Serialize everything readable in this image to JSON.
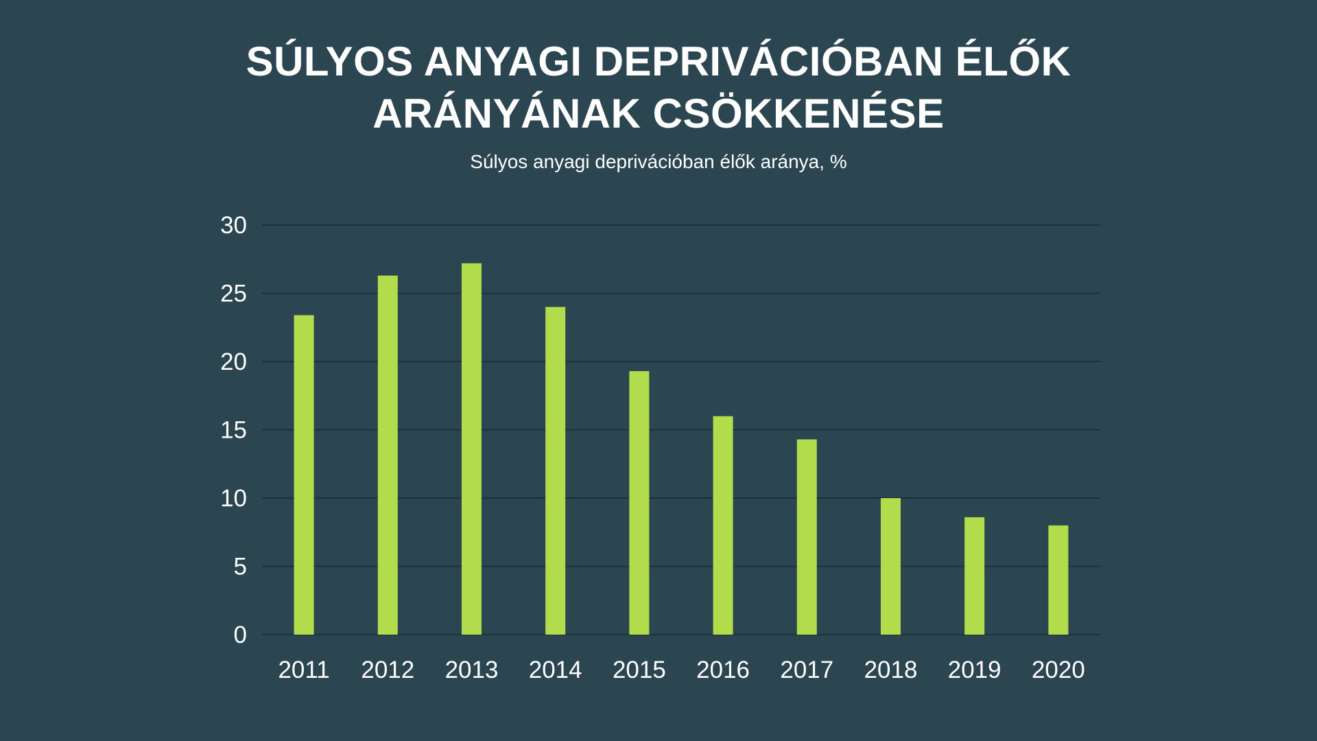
{
  "colors": {
    "background": "#2b4651",
    "bar": "#b3dc4c",
    "grid": "#1c313a",
    "text": "#ffffff"
  },
  "chart_data": {
    "type": "bar",
    "title_lines": [
      "SÚLYOS ANYAGI DEPRIVÁCIÓBAN ÉLŐK",
      "ARÁNYÁNAK CSÖKKENÉSE"
    ],
    "subtitle": "Súlyos anyagi deprivációban élők aránya, %",
    "categories": [
      "2011",
      "2012",
      "2013",
      "2014",
      "2015",
      "2016",
      "2017",
      "2018",
      "2019",
      "2020"
    ],
    "values": [
      23.4,
      26.3,
      27.2,
      24.0,
      19.3,
      16.0,
      14.3,
      10.0,
      8.6,
      8.0
    ],
    "ylim": [
      0,
      30
    ],
    "yticks": [
      "0",
      "5",
      "10",
      "15",
      "20",
      "25",
      "30"
    ],
    "grid": true,
    "legend": "none"
  }
}
